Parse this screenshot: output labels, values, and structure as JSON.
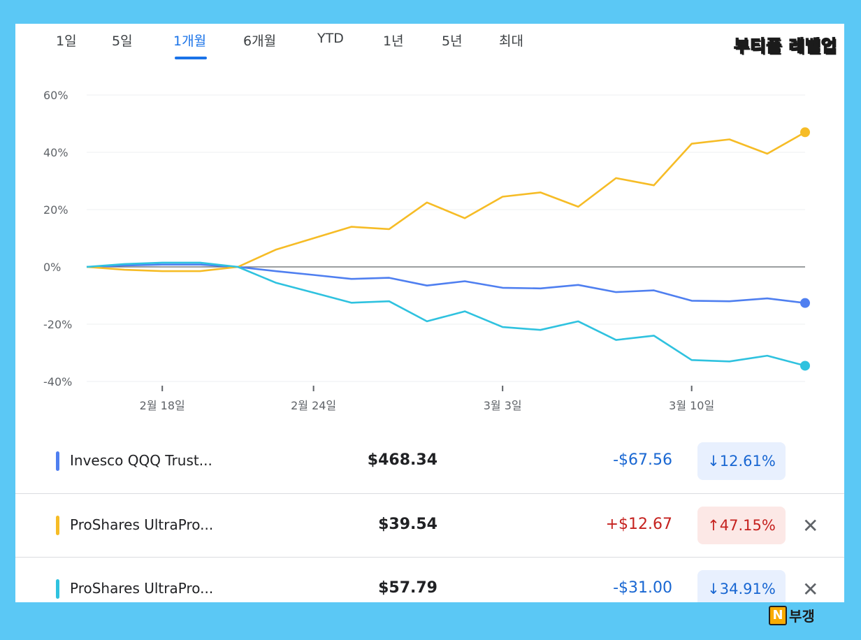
{
  "tabs": [
    {
      "label": "1일",
      "active": false
    },
    {
      "label": "5일",
      "active": false
    },
    {
      "label": "1개월",
      "active": true
    },
    {
      "label": "6개월",
      "active": false
    },
    {
      "label": "YTD",
      "active": false
    },
    {
      "label": "1년",
      "active": false
    },
    {
      "label": "5년",
      "active": false
    },
    {
      "label": "최대",
      "active": false
    }
  ],
  "logo_text": "부티플 레벨업",
  "footer_badge": {
    "letter": "N",
    "text": "부갱"
  },
  "colors": {
    "qqq": "#4f7ff0",
    "tqqq": "#f6bc26",
    "sqqq": "#2fc2df",
    "neg": "#1967d2",
    "pos": "#c5221f"
  },
  "chart_data": {
    "type": "line",
    "yticks": [
      "60%",
      "40%",
      "20%",
      "0%",
      "-20%",
      "-40%"
    ],
    "ylim": [
      -40,
      60
    ],
    "xticks": [
      {
        "label": "2월 18일",
        "index": 2
      },
      {
        "label": "2월 24일",
        "index": 6
      },
      {
        "label": "3월 3일",
        "index": 11
      },
      {
        "label": "3월 10일",
        "index": 16
      }
    ],
    "series": [
      {
        "name": "Invesco QQQ Trust...",
        "color": "#4f7ff0",
        "values": [
          0,
          0.5,
          0.8,
          0.8,
          0,
          -1.5,
          -2.8,
          -4.2,
          -3.8,
          -6.5,
          -5,
          -7.3,
          -7.5,
          -6.3,
          -8.8,
          -8.2,
          -11.8,
          -12,
          -11,
          -12.6
        ]
      },
      {
        "name": "ProShares UltraPro...",
        "color": "#f6bc26",
        "values": [
          0,
          -1,
          -1.5,
          -1.5,
          0,
          6,
          10,
          14,
          13.2,
          22.5,
          17,
          24.5,
          26,
          21,
          31,
          28.5,
          43,
          44.5,
          39.5,
          47
        ]
      },
      {
        "name": "ProShares UltraPro...",
        "color": "#2fc2df",
        "values": [
          0,
          1,
          1.5,
          1.5,
          0,
          -5.5,
          -9,
          -12.5,
          -12,
          -19,
          -15.5,
          -21,
          -22,
          -19,
          -25.5,
          -24,
          -32.5,
          -33,
          -31,
          -34.5
        ]
      }
    ]
  },
  "rows": [
    {
      "name": "Invesco QQQ Trust...",
      "price": "$468.34",
      "change": "-$67.56",
      "pct": "↓12.61%",
      "direction": "neg",
      "close": ""
    },
    {
      "name": "ProShares UltraPro...",
      "price": "$39.54",
      "change": "+$12.67",
      "pct": "↑47.15%",
      "direction": "pos",
      "close": "✕"
    },
    {
      "name": "ProShares UltraPro...",
      "price": "$57.79",
      "change": "-$31.00",
      "pct": "↓34.91%",
      "direction": "neg",
      "close": "✕"
    }
  ]
}
